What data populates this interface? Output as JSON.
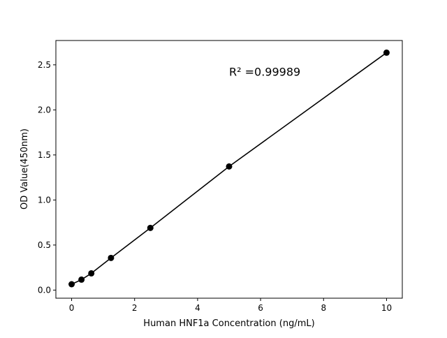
{
  "chart_data": {
    "type": "scatter",
    "title": "",
    "xlabel": "Human HNF1a Concentration (ng/mL)",
    "ylabel": "OD Value(450nm)",
    "xlim": [
      -0.5,
      10.5
    ],
    "ylim": [
      -0.09,
      2.77
    ],
    "xticks": [
      0,
      2,
      4,
      6,
      8,
      10
    ],
    "xtick_labels": [
      "0",
      "2",
      "4",
      "6",
      "8",
      "10"
    ],
    "yticks": [
      0.0,
      0.5,
      1.0,
      1.5,
      2.0,
      2.5
    ],
    "ytick_labels": [
      "0.0",
      "0.5",
      "1.0",
      "1.5",
      "2.0",
      "2.5"
    ],
    "grid": false,
    "series": [
      {
        "x": [
          0,
          0.3125,
          0.625,
          1.25,
          2.5,
          5,
          10
        ],
        "y": [
          0.065,
          0.116,
          0.186,
          0.357,
          0.69,
          1.372,
          2.635
        ],
        "color": "#000000",
        "marker": "circle",
        "line": true
      }
    ],
    "annotation": {
      "text": "R² =0.99989",
      "x": 5,
      "y": 2.38
    }
  }
}
